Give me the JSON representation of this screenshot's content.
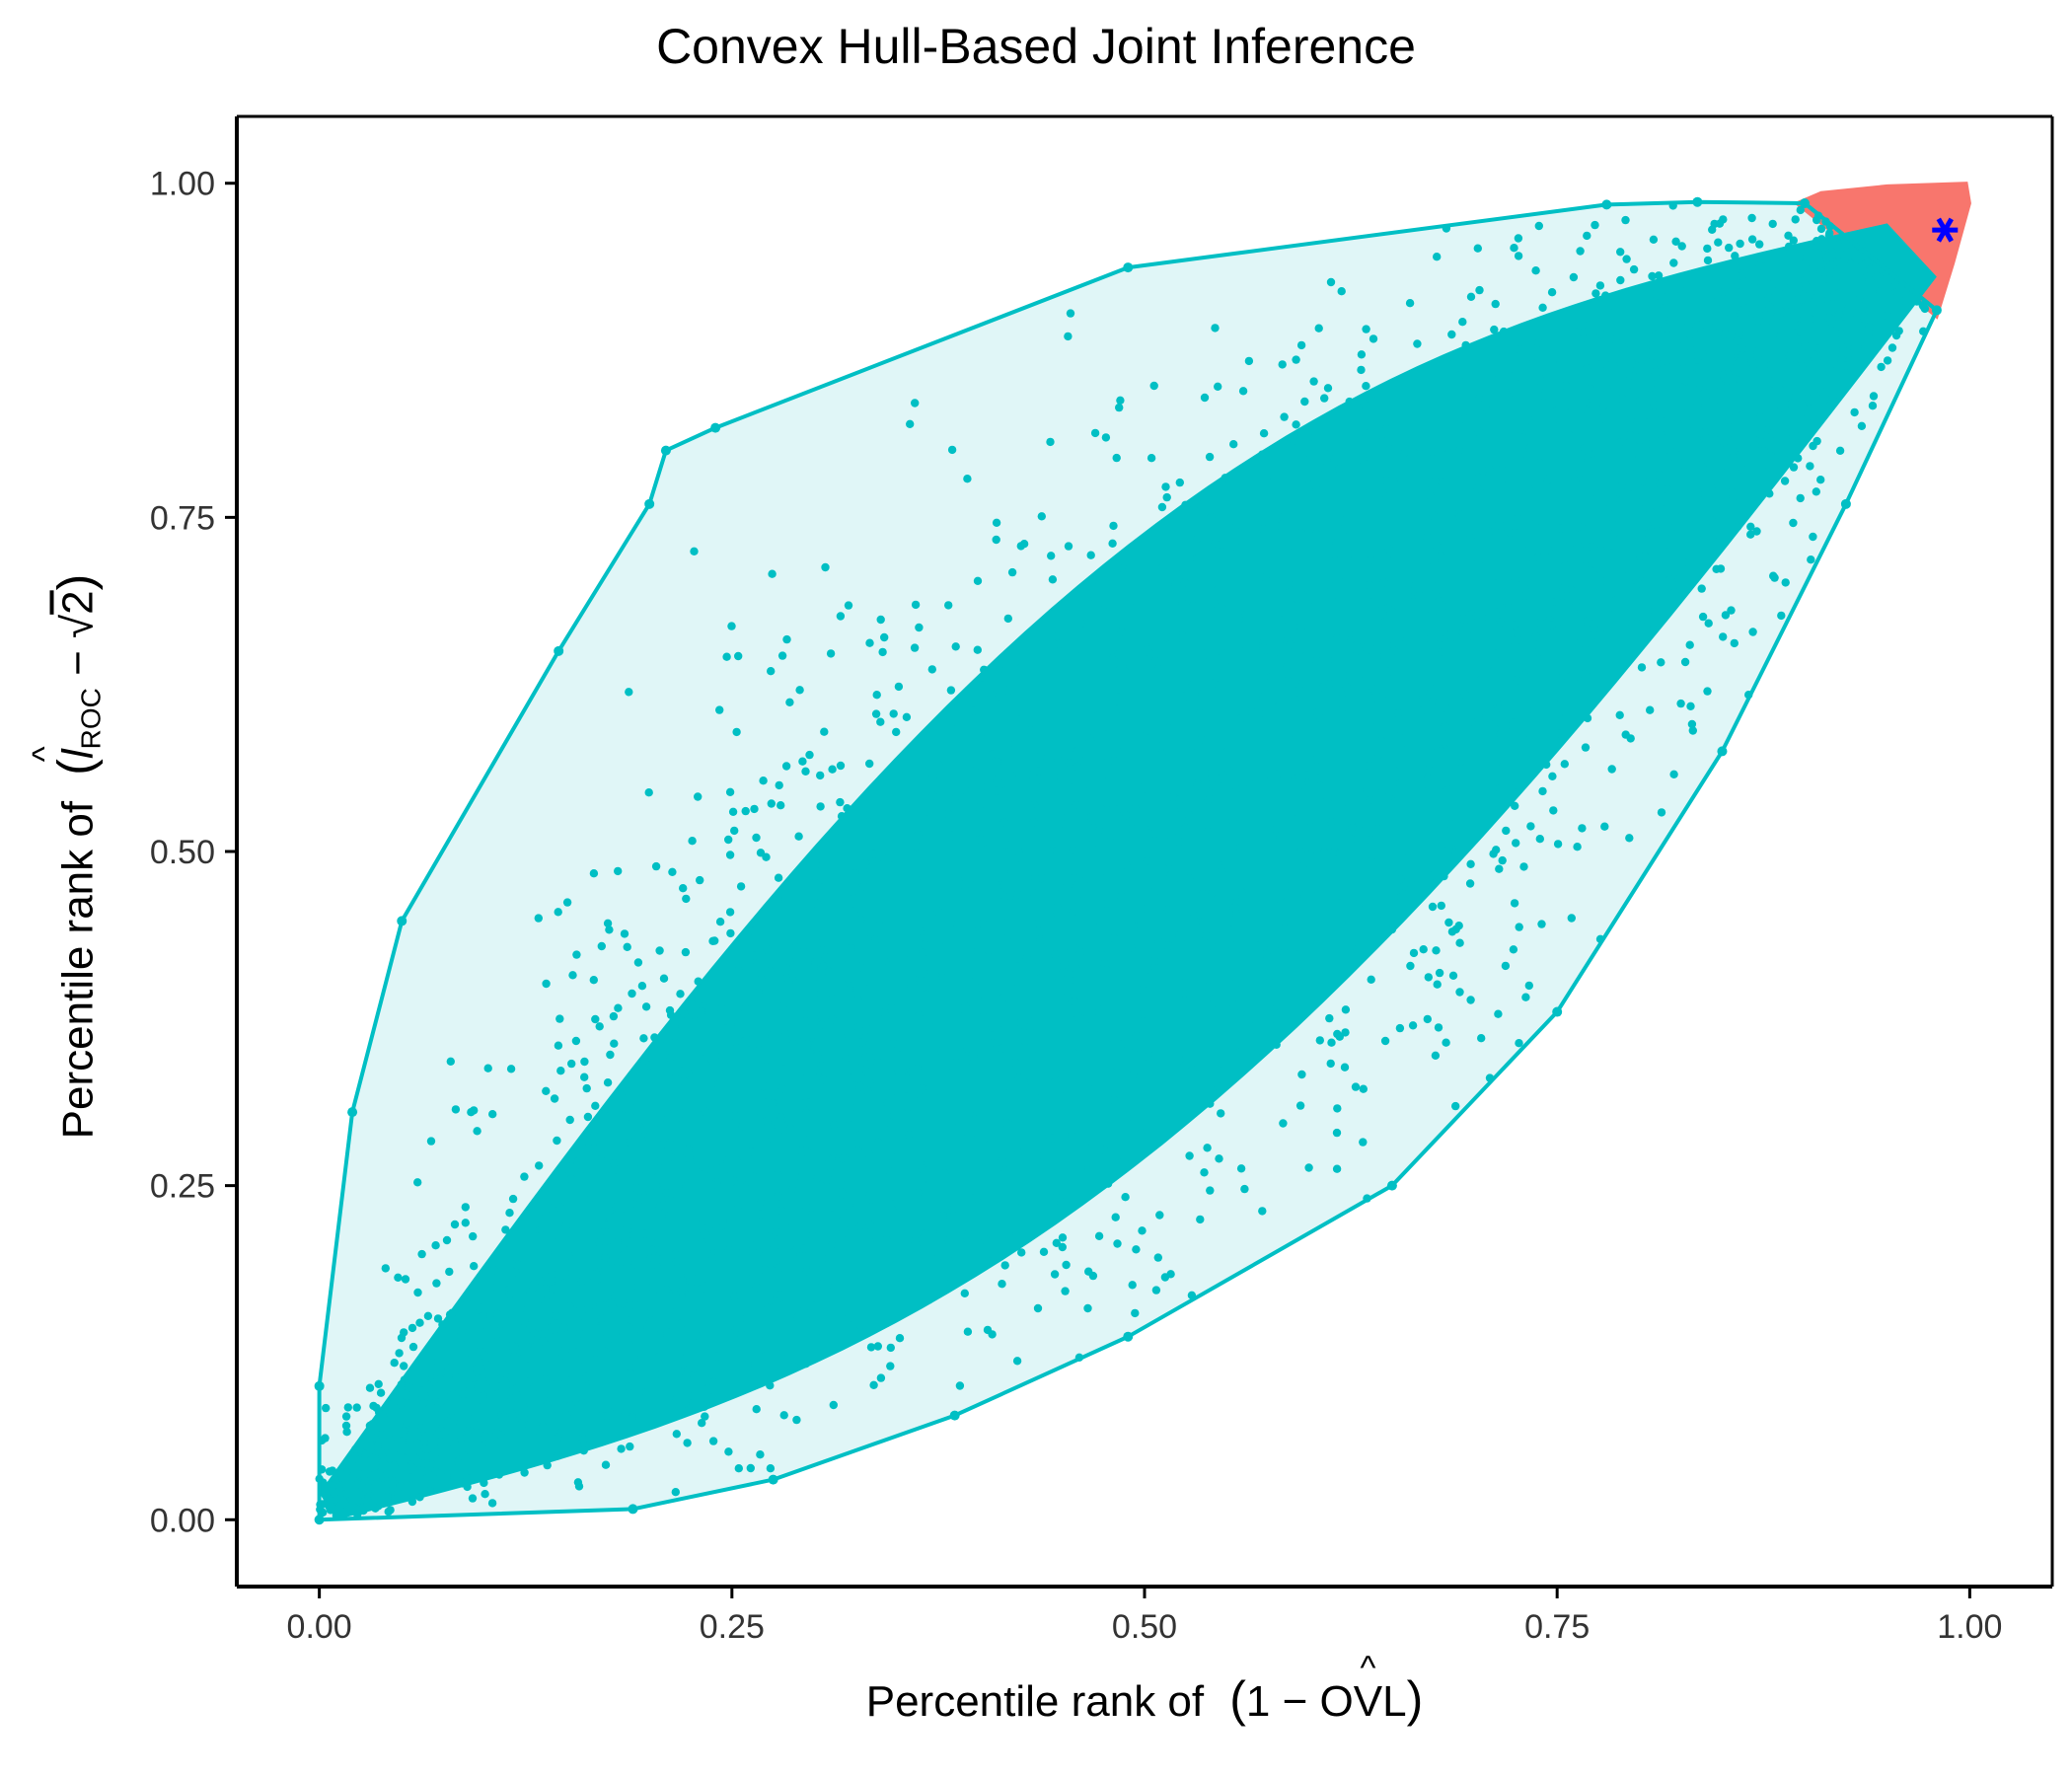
{
  "title": "Convex Hull-Based Joint Inference",
  "axes": {
    "x_label_prefix": "Percentile rank of",
    "x_label_math": "(1 − OVL)",
    "y_label_prefix": "Percentile rank of",
    "y_label_math": "(l_ROC − √2)",
    "x_ticks": [
      "0.00",
      "0.25",
      "0.50",
      "0.75",
      "1.00"
    ],
    "y_ticks": [
      "0.00",
      "0.25",
      "0.50",
      "0.75",
      "1.00"
    ]
  },
  "colors": {
    "main_hull": "#00bfc4",
    "main_fill": "#e0f6f7",
    "region_hull": "#f8766d",
    "marker": "#0000ff"
  },
  "chart_data": {
    "type": "scatter",
    "title": "Convex Hull-Based Joint Inference",
    "xlabel": "Percentile rank of (1 − OVL)",
    "ylabel": "Percentile rank of (l_ROC − √2)",
    "xlim": [
      -0.05,
      1.05
    ],
    "ylim": [
      -0.05,
      1.05
    ],
    "grid": false,
    "legend": "none",
    "hull_main": [
      [
        0.0,
        0.0
      ],
      [
        0.19,
        0.008
      ],
      [
        0.275,
        0.03
      ],
      [
        0.385,
        0.078
      ],
      [
        0.49,
        0.137
      ],
      [
        0.65,
        0.25
      ],
      [
        0.75,
        0.38
      ],
      [
        0.85,
        0.575
      ],
      [
        0.925,
        0.76
      ],
      [
        0.98,
        0.905
      ],
      [
        0.9,
        0.985
      ],
      [
        0.835,
        0.986
      ],
      [
        0.78,
        0.984
      ],
      [
        0.49,
        0.937
      ],
      [
        0.24,
        0.817
      ],
      [
        0.21,
        0.8
      ],
      [
        0.2,
        0.76
      ],
      [
        0.145,
        0.65
      ],
      [
        0.05,
        0.448
      ],
      [
        0.02,
        0.305
      ],
      [
        0.0,
        0.1
      ]
    ],
    "hull_upper_region": [
      [
        0.895,
        0.985
      ],
      [
        0.91,
        0.993
      ],
      [
        0.95,
        0.998
      ],
      [
        0.998,
        1.0
      ],
      [
        1.0,
        0.985
      ],
      [
        0.99,
        0.94
      ],
      [
        0.98,
        0.9
      ]
    ],
    "highlight_point": {
      "x": 0.985,
      "y": 0.965,
      "marker": "asterisk"
    },
    "point_cloud": {
      "description_hidden": true,
      "color": "#00bfc4"
    }
  }
}
